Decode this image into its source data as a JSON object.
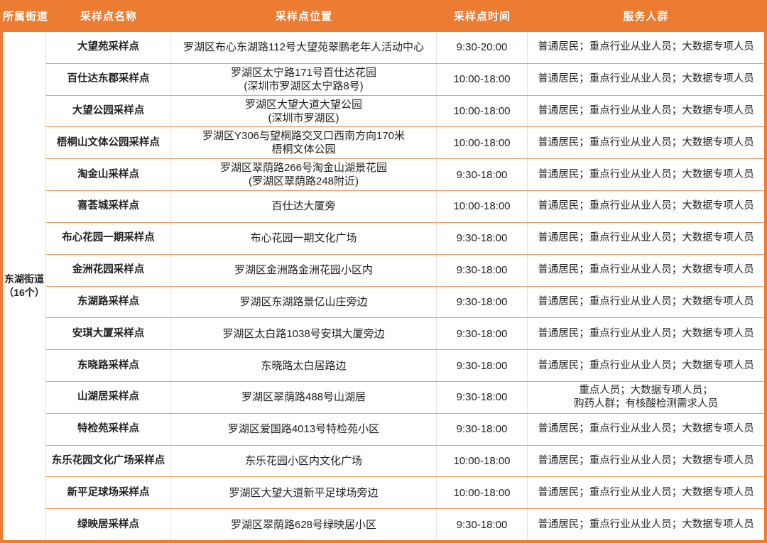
{
  "colors": {
    "header_bg": "#EC7C31",
    "outer_border": "#EC7C31",
    "row_separator": "#F09E66",
    "column_separator": "#E3E3E3",
    "header_text": "#FFFFFF",
    "body_text": "#1F1F1F"
  },
  "table": {
    "columns": [
      "所属街道",
      "采样点名称",
      "采样点位置",
      "采样点时间",
      "服务人群"
    ],
    "street": {
      "name": "东湖街道",
      "count": "（16个）"
    },
    "rows": [
      {
        "name": "大望苑采样点",
        "location": [
          "罗湖区布心东湖路112号大望苑翠鹏老年人活动中心"
        ],
        "time": "9:30-20:00",
        "audience": [
          "普通居民；重点行业从业人员；大数据专项人员"
        ]
      },
      {
        "name": "百仕达东郡采样点",
        "location": [
          "罗湖区太宁路171号百仕达花园",
          "(深圳市罗湖区太宁路8号)"
        ],
        "time": "10:00-18:00",
        "audience": [
          "普通居民；重点行业从业人员；大数据专项人员"
        ]
      },
      {
        "name": "大望公园采样点",
        "location": [
          "罗湖区大望大道大望公园",
          "(深圳市罗湖区)"
        ],
        "time": "10:00-18:00",
        "audience": [
          "普通居民；重点行业从业人员；大数据专项人员"
        ]
      },
      {
        "name": "梧桐山文体公园采样点",
        "location": [
          "罗湖区Y306与望桐路交叉口西南方向170米",
          "梧桐文体公园"
        ],
        "time": "10:00-18:00",
        "audience": [
          "普通居民；重点行业从业人员；大数据专项人员"
        ]
      },
      {
        "name": "淘金山采样点",
        "location": [
          "罗湖区翠荫路266号淘金山湖景花园",
          "(罗湖区翠荫路248附近)"
        ],
        "time": "9:30-18:00",
        "audience": [
          "普通居民；重点行业从业人员；大数据专项人员"
        ]
      },
      {
        "name": "喜荟城采样点",
        "location": [
          "百仕达大厦旁"
        ],
        "time": "10:00-18:00",
        "audience": [
          "普通居民；重点行业从业人员；大数据专项人员"
        ]
      },
      {
        "name": "布心花园一期采样点",
        "location": [
          "布心花园一期文化广场"
        ],
        "time": "9:30-18:00",
        "audience": [
          "普通居民；重点行业从业人员；大数据专项人员"
        ]
      },
      {
        "name": "金洲花园采样点",
        "location": [
          "罗湖区金洲路金洲花园小区内"
        ],
        "time": "9:30-18:00",
        "audience": [
          "普通居民；重点行业从业人员；大数据专项人员"
        ]
      },
      {
        "name": "东湖路采样点",
        "location": [
          "罗湖区东湖路景亿山庄旁边"
        ],
        "time": "9:30-18:00",
        "audience": [
          "普通居民；重点行业从业人员；大数据专项人员"
        ]
      },
      {
        "name": "安琪大厦采样点",
        "location": [
          "罗湖区太白路1038号安琪大厦旁边"
        ],
        "time": "9:30-18:00",
        "audience": [
          "普通居民；重点行业从业人员；大数据专项人员"
        ]
      },
      {
        "name": "东晓路采样点",
        "location": [
          "东晓路太白居路边"
        ],
        "time": "9:30-18:00",
        "audience": [
          "普通居民；重点行业从业人员；大数据专项人员"
        ]
      },
      {
        "name": "山湖居采样点",
        "location": [
          "罗湖区翠荫路488号山湖居"
        ],
        "time": "9:30-18:00",
        "audience": [
          "重点人员；大数据专项人员；",
          "购药人群；有核酸检测需求人员"
        ]
      },
      {
        "name": "特检苑采样点",
        "location": [
          "罗湖区爱国路4013号特检苑小区"
        ],
        "time": "9:30-18:00",
        "audience": [
          "普通居民；重点行业从业人员；大数据专项人员"
        ]
      },
      {
        "name": "东乐花园文化广场采样点",
        "location": [
          "东乐花园小区内文化广场"
        ],
        "time": "10:00-18:00",
        "audience": [
          "普通居民；重点行业从业人员；大数据专项人员"
        ]
      },
      {
        "name": "新平足球场采样点",
        "location": [
          "罗湖区大望大道新平足球场旁边"
        ],
        "time": "10:00-18:00",
        "audience": [
          "普通居民；重点行业从业人员；大数据专项人员"
        ]
      },
      {
        "name": "绿映居采样点",
        "location": [
          "罗湖区翠荫路628号绿映居小区"
        ],
        "time": "9:30-18:00",
        "audience": [
          "普通居民；重点行业从业人员；大数据专项人员"
        ]
      }
    ]
  }
}
